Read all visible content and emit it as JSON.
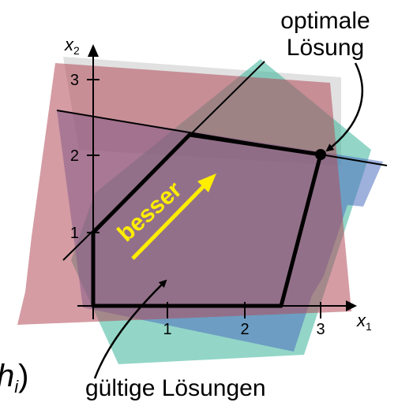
{
  "axes": {
    "x_label": "x",
    "x_sub": "1",
    "y_label": "x",
    "y_sub": "2",
    "x_ticks": [
      "1",
      "2",
      "3"
    ],
    "y_ticks": [
      "1",
      "2",
      "3"
    ]
  },
  "annotations": {
    "optimum_line1": "optimale",
    "optimum_line2": "Lösung",
    "feasible": "gültige Lösungen",
    "direction": "besser",
    "cut_off_text": "h",
    "cut_off_sub": "i",
    "cut_off_paren": ")"
  },
  "colors": {
    "halfplane_red": "#b24a5a",
    "halfplane_teal": "#3bb59a",
    "halfplane_blue": "#4f6fc0",
    "halfplane_gray": "#c8c8c8",
    "arrow_yellow": "#ffee00"
  }
}
